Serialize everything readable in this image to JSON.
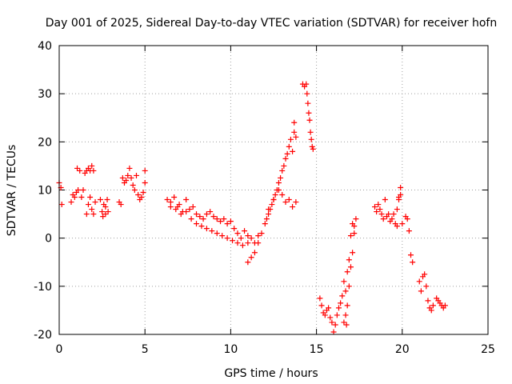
{
  "chart_data": {
    "type": "scatter",
    "title": "Day 001 of 2025, Sidereal Day-to-day VTEC variation (SDTVAR) for receiver hofn",
    "xlabel": "GPS time / hours",
    "ylabel": "SDTVAR / TECUs",
    "xlim": [
      0,
      25
    ],
    "ylim": [
      -20,
      40
    ],
    "xticks": [
      0,
      5,
      10,
      15,
      20,
      25
    ],
    "yticks": [
      -20,
      -10,
      0,
      10,
      20,
      30,
      40
    ],
    "grid": true,
    "marker": "+",
    "series": [
      {
        "name": "SDTVAR",
        "color": "#ff0000",
        "x": [
          0.0,
          0.1,
          0.15,
          0.7,
          0.8,
          0.9,
          1.0,
          1.05,
          1.1,
          1.2,
          1.3,
          1.4,
          1.5,
          1.6,
          1.7,
          1.8,
          1.9,
          2.0,
          1.6,
          1.7,
          1.8,
          1.9,
          2.0,
          2.1,
          2.4,
          2.5,
          2.6,
          2.7,
          2.8,
          2.55,
          2.7,
          2.85,
          3.5,
          3.6,
          3.7,
          3.8,
          3.9,
          4.0,
          4.1,
          4.2,
          4.3,
          4.4,
          4.5,
          4.6,
          4.7,
          4.8,
          4.9,
          5.0,
          5.0,
          6.3,
          6.5,
          6.7,
          6.9,
          7.0,
          7.2,
          7.4,
          7.6,
          7.8,
          8.0,
          8.2,
          8.4,
          8.6,
          8.8,
          9.0,
          9.2,
          9.4,
          9.6,
          9.8,
          10.0,
          10.2,
          10.4,
          10.6,
          10.8,
          11.0,
          11.2,
          11.4,
          11.6,
          6.5,
          6.8,
          7.1,
          7.4,
          7.7,
          8.0,
          8.3,
          8.6,
          8.9,
          9.2,
          9.5,
          9.8,
          10.1,
          10.4,
          10.7,
          11.0,
          11.0,
          11.2,
          11.4,
          11.6,
          11.8,
          12.0,
          12.1,
          12.2,
          12.3,
          12.4,
          12.5,
          12.6,
          12.7,
          12.8,
          12.9,
          13.0,
          13.1,
          13.2,
          13.3,
          13.4,
          13.5,
          13.6,
          13.7,
          13.7,
          13.8,
          12.2,
          12.5,
          12.8,
          13.0,
          13.2,
          13.4,
          13.6,
          13.8,
          14.2,
          14.3,
          14.4,
          14.45,
          14.5,
          14.55,
          14.6,
          14.65,
          14.7,
          14.75,
          14.8,
          15.2,
          15.3,
          15.4,
          15.5,
          15.6,
          15.7,
          15.8,
          15.9,
          16.0,
          16.1,
          16.2,
          16.3,
          16.4,
          16.5,
          16.6,
          16.7,
          16.75,
          16.8,
          16.9,
          17.0,
          17.1,
          17.2,
          17.3,
          16.6,
          16.7,
          16.8,
          16.9,
          17.0,
          17.1,
          17.2,
          18.4,
          18.5,
          18.6,
          18.7,
          18.8,
          18.9,
          19.0,
          19.1,
          19.2,
          19.3,
          19.4,
          19.5,
          19.6,
          19.7,
          19.8,
          19.9,
          20.0,
          19.7,
          19.8,
          19.9,
          20.2,
          20.3,
          20.4,
          20.5,
          20.6,
          21.0,
          21.1,
          21.2,
          21.3,
          21.4,
          21.5,
          21.6,
          21.7,
          21.8,
          22.0,
          22.1,
          22.2,
          22.3,
          22.4,
          22.5
        ],
        "y": [
          11.5,
          10.5,
          7.0,
          7.5,
          9.0,
          8.5,
          9.5,
          14.5,
          10.0,
          14.0,
          8.5,
          10.0,
          13.5,
          14.0,
          14.5,
          14.0,
          15.0,
          14.0,
          5.0,
          7.0,
          8.5,
          6.0,
          5.0,
          7.5,
          8.0,
          5.5,
          7.0,
          6.5,
          8.0,
          4.5,
          5.0,
          5.5,
          7.5,
          7.0,
          12.5,
          11.5,
          12.0,
          13.0,
          14.5,
          12.5,
          11.0,
          10.0,
          13.0,
          9.0,
          8.0,
          8.5,
          9.5,
          11.5,
          14.0,
          8.0,
          7.5,
          8.5,
          6.5,
          7.0,
          5.5,
          8.0,
          6.0,
          6.5,
          5.0,
          4.5,
          4.0,
          5.0,
          5.5,
          4.5,
          4.0,
          3.5,
          4.0,
          3.0,
          3.5,
          2.0,
          1.0,
          0.0,
          1.5,
          0.5,
          0.0,
          -1.0,
          0.5,
          6.5,
          6.0,
          5.0,
          5.5,
          4.0,
          3.0,
          2.5,
          2.0,
          1.5,
          1.0,
          0.5,
          0.0,
          -0.5,
          -1.0,
          -1.5,
          -1.0,
          -5.0,
          -4.0,
          -3.0,
          -1.0,
          1.0,
          3.0,
          4.0,
          5.0,
          6.0,
          7.0,
          8.0,
          9.0,
          10.0,
          11.5,
          12.5,
          14.0,
          15.0,
          16.5,
          17.5,
          19.0,
          20.5,
          18.0,
          22.0,
          24.0,
          21.0,
          6.0,
          8.0,
          10.0,
          9.0,
          7.5,
          8.0,
          6.5,
          7.5,
          32.0,
          31.5,
          32.0,
          30.0,
          28.0,
          26.0,
          24.5,
          22.0,
          20.5,
          19.0,
          18.5,
          -12.5,
          -14.0,
          -15.5,
          -16.0,
          -15.0,
          -14.5,
          -16.5,
          -17.5,
          -19.5,
          -18.0,
          -16.0,
          -14.5,
          -13.5,
          -12.0,
          -17.5,
          -16.0,
          -18.0,
          -14.0,
          -10.0,
          -6.0,
          -3.0,
          1.0,
          4.0,
          -9.0,
          -11.0,
          -7.0,
          -4.5,
          0.5,
          3.0,
          2.5,
          6.5,
          5.5,
          7.0,
          6.0,
          5.0,
          4.0,
          8.0,
          4.5,
          5.0,
          3.5,
          4.0,
          5.0,
          3.0,
          2.5,
          8.5,
          10.5,
          3.0,
          6.0,
          8.0,
          9.0,
          4.5,
          4.0,
          1.5,
          -3.5,
          -5.0,
          -9.0,
          -11.0,
          -8.0,
          -7.5,
          -10.0,
          -13.0,
          -14.5,
          -15.0,
          -14.0,
          -12.5,
          -13.0,
          -13.5,
          -14.0,
          -14.5,
          -14.0
        ]
      }
    ]
  }
}
